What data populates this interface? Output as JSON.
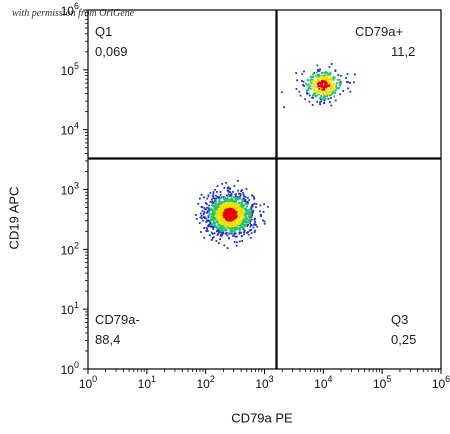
{
  "watermark": "with permission from OriGene",
  "chart_data": {
    "type": "scatter",
    "title": "",
    "xlabel": "CD79a PE",
    "ylabel": "CD19 APC",
    "x_scale": "log",
    "y_scale": "log",
    "xlim": [
      1,
      1000000
    ],
    "ylim": [
      1,
      1000000
    ],
    "x_ticks": [
      {
        "value": 1,
        "base": "10",
        "exp": "0"
      },
      {
        "value": 10,
        "base": "10",
        "exp": "1"
      },
      {
        "value": 100,
        "base": "10",
        "exp": "2"
      },
      {
        "value": 1000,
        "base": "10",
        "exp": "3"
      },
      {
        "value": 10000,
        "base": "10",
        "exp": "4"
      },
      {
        "value": 100000,
        "base": "10",
        "exp": "5"
      },
      {
        "value": 1000000,
        "base": "10",
        "exp": "6"
      }
    ],
    "y_ticks": [
      {
        "value": 1,
        "base": "10",
        "exp": "0"
      },
      {
        "value": 10,
        "base": "10",
        "exp": "1"
      },
      {
        "value": 100,
        "base": "10",
        "exp": "2"
      },
      {
        "value": 1000,
        "base": "10",
        "exp": "3"
      },
      {
        "value": 10000,
        "base": "10",
        "exp": "4"
      },
      {
        "value": 100000,
        "base": "10",
        "exp": "5"
      },
      {
        "value": 1000000,
        "base": "10",
        "exp": "6"
      }
    ],
    "gates": {
      "x": 1600,
      "y": 3300
    },
    "quadrants": [
      {
        "name": "Q1",
        "value": "0,069",
        "position": "top-left"
      },
      {
        "name": "CD79a+",
        "value": "11,2",
        "position": "top-right"
      },
      {
        "name": "CD79a-",
        "value": "88,4",
        "position": "bottom-left"
      },
      {
        "name": "Q3",
        "value": "0,25",
        "position": "bottom-right"
      }
    ],
    "populations": [
      {
        "name": "",
        "center_x": 260,
        "center_y": 380,
        "spread_x_log": 0.2,
        "spread_y_log": 0.17,
        "count": 1400
      },
      {
        "name": "",
        "center_x": 10000,
        "center_y": 55000,
        "spread_x_log": 0.17,
        "spread_y_log": 0.13,
        "count": 350
      }
    ],
    "colors": {
      "high_density": "#e60000",
      "mid_density": "#f0e000",
      "low_mid_density": "#26c26b",
      "low_density": "#1f2fd6",
      "gate_lines": "#000000",
      "frame": "#000000"
    },
    "grid": false,
    "legend": "none"
  }
}
